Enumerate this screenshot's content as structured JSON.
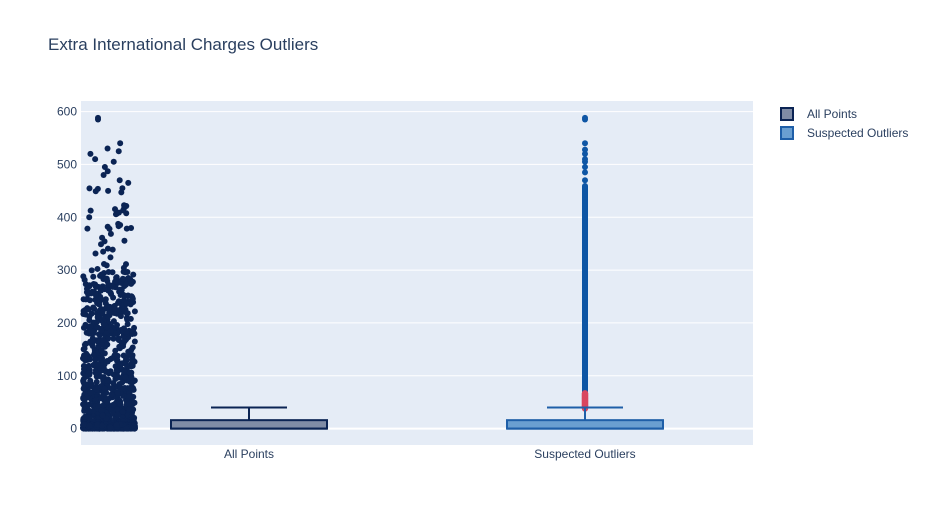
{
  "chart_data": {
    "type": "box",
    "title": "Extra International Charges Outliers",
    "xlabel": "",
    "ylabel": "",
    "ylim": [
      -31,
      620
    ],
    "yticks": [
      0,
      100,
      200,
      300,
      400,
      500,
      600
    ],
    "categories": [
      "All Points",
      "Suspected Outliers"
    ],
    "series": [
      {
        "name": "All Points",
        "points_mode": "all",
        "fill_color": "#7f8ca6",
        "line_color": "#0b2454",
        "marker_color": "#0b2454",
        "box": {
          "lower_fence": 0,
          "q1": 0,
          "median": 0,
          "q3": 16,
          "upper_fence": 40
        },
        "max_value": 588
      },
      {
        "name": "Suspected Outliers",
        "points_mode": "suspectedoutliers",
        "fill_color": "#6a9fd1",
        "line_color": "#1f5fa8",
        "marker_color": "#0f56a5",
        "suspected_outlier_color": "#d9465f",
        "box": {
          "lower_fence": 0,
          "q1": 0,
          "median": 0,
          "q3": 16,
          "upper_fence": 40
        },
        "outliers_from": 42,
        "outliers_to": 540,
        "extreme_outliers": [
          585,
          588
        ],
        "suspected_outliers_range": [
          38,
          68
        ]
      }
    ],
    "legend": {
      "position": "top-right",
      "entries": [
        "All Points",
        "Suspected Outliers"
      ]
    },
    "grid": true,
    "background": "#e5ecf6"
  }
}
